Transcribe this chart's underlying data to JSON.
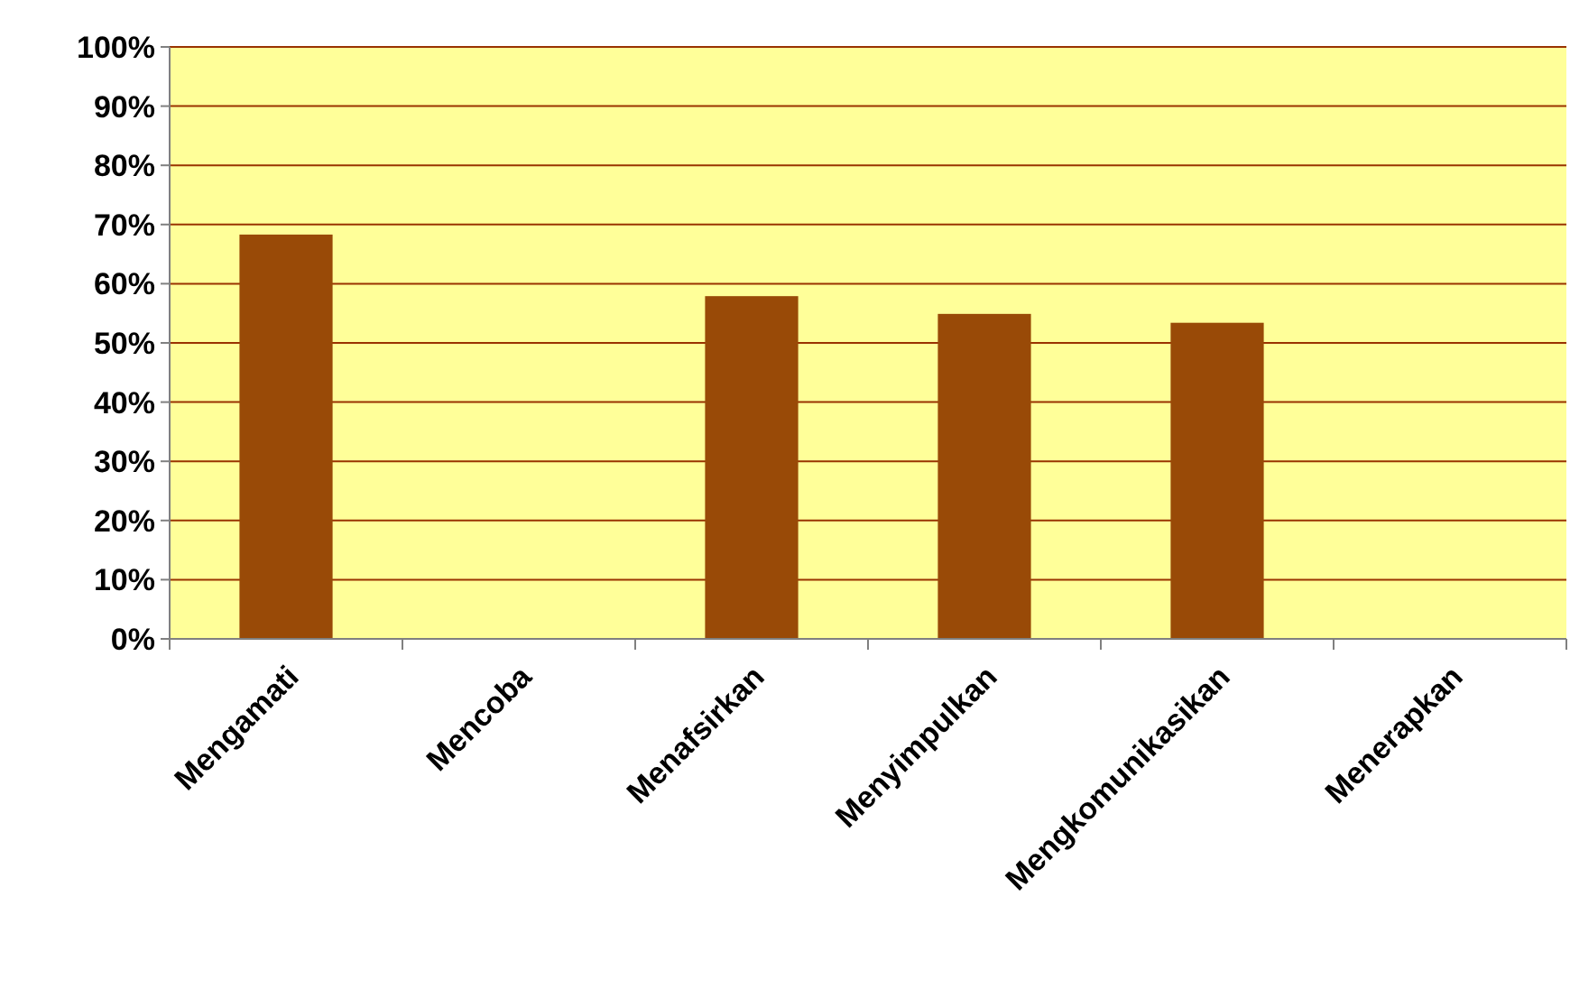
{
  "chart_data": {
    "type": "bar",
    "categories": [
      "Mengamati",
      "Mencoba",
      "Menafsirkan",
      "Menyimpulkan",
      "Mengkomunikasikan",
      "Menerapkan"
    ],
    "values": [
      68.3,
      0,
      57.9,
      54.9,
      53.4,
      0
    ],
    "color": "#994a07",
    "ylim": [
      0,
      100
    ],
    "yticks": [
      {
        "value": 0,
        "label": "0%"
      },
      {
        "value": 10,
        "label": "10%"
      },
      {
        "value": 20,
        "label": "20%"
      },
      {
        "value": 30,
        "label": "30%"
      },
      {
        "value": 40,
        "label": "40%"
      },
      {
        "value": 50,
        "label": "50%"
      },
      {
        "value": 60,
        "label": "60%"
      },
      {
        "value": 70,
        "label": "70%"
      },
      {
        "value": 80,
        "label": "80%"
      },
      {
        "value": 90,
        "label": "90%"
      },
      {
        "value": 100,
        "label": "100%"
      }
    ],
    "grid": "y"
  }
}
